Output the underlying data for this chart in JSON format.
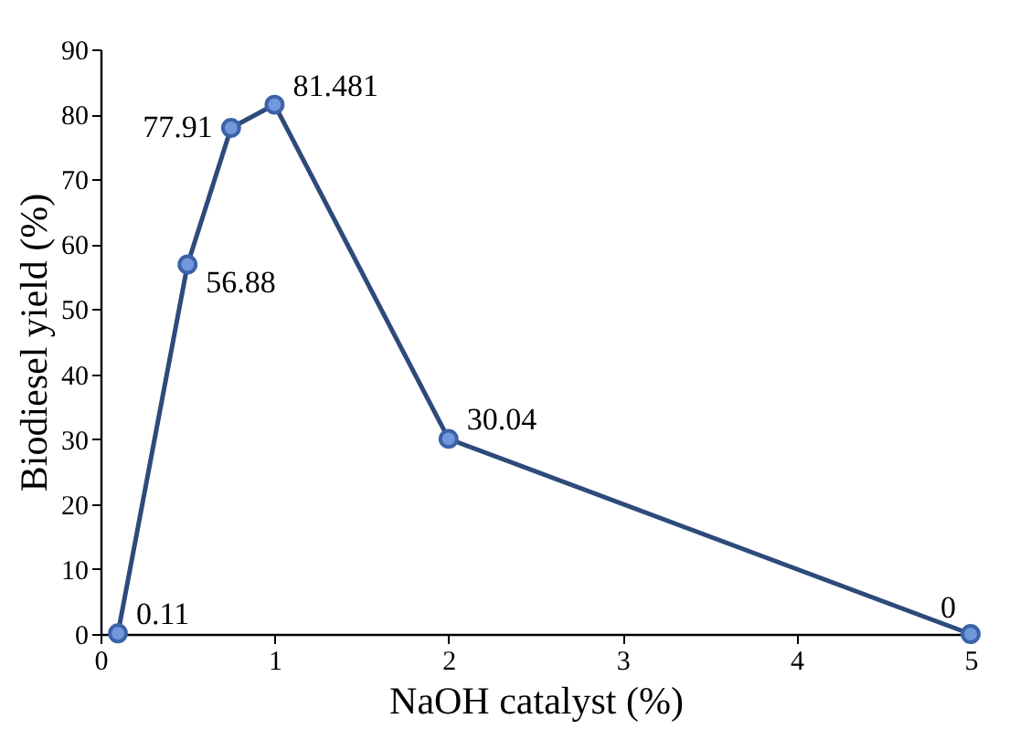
{
  "chart_data": {
    "type": "line",
    "xlabel": "NaOH catalyst (%)",
    "ylabel": "Biodiesel  yield (%)",
    "x": [
      0.1,
      0.5,
      0.75,
      1,
      2,
      5
    ],
    "series": [
      {
        "color": "#2e4a7a",
        "values": [
          0.11,
          56.88,
          77.91,
          81.481,
          30.04,
          0
        ]
      }
    ],
    "xlim": [
      0,
      5
    ],
    "xticks": [
      0,
      1,
      2,
      3,
      4,
      5
    ],
    "ylim": [
      0,
      90
    ],
    "yticks": [
      0,
      10,
      20,
      30,
      40,
      50,
      60,
      70,
      80,
      90
    ],
    "grid": false,
    "marker": "circle",
    "line_style": "solid",
    "data_labels": true
  }
}
